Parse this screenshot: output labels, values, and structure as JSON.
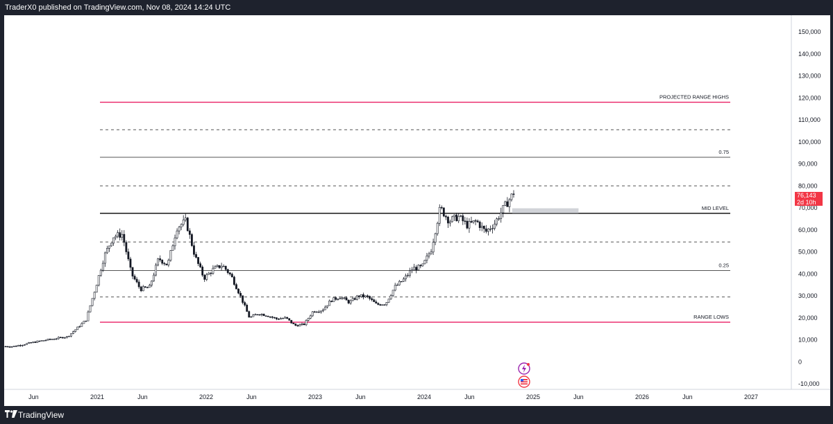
{
  "header": {
    "publish_text": "TraderX0 published on TradingView.com, Nov 08, 2024 14:24 UTC"
  },
  "footer": {
    "brand_text": "TradingView",
    "logo_icon": "tradingview-logo-icon"
  },
  "price_axis": {
    "labels": [
      "150,000",
      "140,000",
      "130,000",
      "120,000",
      "110,000",
      "100,000",
      "90,000",
      "80,000",
      "70,000",
      "60,000",
      "50,000",
      "40,000",
      "30,000",
      "20,000",
      "10,000",
      "0",
      "-10,000"
    ]
  },
  "time_axis": {
    "labels": [
      "Jun",
      "2021",
      "Jun",
      "2022",
      "Jun",
      "2023",
      "Jun",
      "2024",
      "Jun",
      "2025",
      "Jun",
      "2026",
      "Jun",
      "2027"
    ]
  },
  "current_price": {
    "value": "76,143",
    "countdown": "2d 10h",
    "color": "#f23645"
  },
  "levels": [
    {
      "label": "PROJECTED RANGE HIGHS",
      "price": 118000,
      "style": "solid",
      "color": "#e91e63"
    },
    {
      "label": "",
      "price": 105500,
      "style": "dashed",
      "color": "#555555"
    },
    {
      "label": "0.75",
      "price": 93000,
      "style": "solid",
      "color": "#555555"
    },
    {
      "label": "",
      "price": 80000,
      "style": "dashed",
      "color": "#555555"
    },
    {
      "label": "MID LEVEL",
      "price": 67500,
      "style": "solid",
      "color": "#000000"
    },
    {
      "label": "",
      "price": 54500,
      "style": "dashed",
      "color": "#555555"
    },
    {
      "label": "0.25",
      "price": 41500,
      "style": "solid",
      "color": "#555555"
    },
    {
      "label": "",
      "price": 29500,
      "style": "dashed",
      "color": "#555555"
    },
    {
      "label": "RANGE LOWS",
      "price": 18000,
      "style": "solid",
      "color": "#e91e63"
    }
  ],
  "chart_data": {
    "type": "candlestick",
    "symbol_hint": "weekly price",
    "ylim": [
      -13000,
      157000
    ],
    "grid": false,
    "x_start": "2020-04",
    "x_end": "2024-11",
    "trend_points": [
      [
        "2020-04",
        7000
      ],
      [
        "2020-07",
        9500
      ],
      [
        "2020-10",
        11500
      ],
      [
        "2020-12",
        19000
      ],
      [
        "2021-01",
        33000
      ],
      [
        "2021-02",
        48000
      ],
      [
        "2021-03",
        57000
      ],
      [
        "2021-04",
        58000
      ],
      [
        "2021-05",
        40000
      ],
      [
        "2021-06",
        33000
      ],
      [
        "2021-07",
        34000
      ],
      [
        "2021-08",
        47000
      ],
      [
        "2021-09",
        44000
      ],
      [
        "2021-10",
        61000
      ],
      [
        "2021-11",
        64000
      ],
      [
        "2021-12",
        48000
      ],
      [
        "2022-01",
        38000
      ],
      [
        "2022-02",
        42000
      ],
      [
        "2022-03",
        44000
      ],
      [
        "2022-04",
        39000
      ],
      [
        "2022-05",
        30000
      ],
      [
        "2022-06",
        20000
      ],
      [
        "2022-07",
        22000
      ],
      [
        "2022-08",
        21000
      ],
      [
        "2022-09",
        19500
      ],
      [
        "2022-10",
        20000
      ],
      [
        "2022-11",
        16500
      ],
      [
        "2022-12",
        17000
      ],
      [
        "2023-01",
        23000
      ],
      [
        "2023-02",
        23500
      ],
      [
        "2023-03",
        28000
      ],
      [
        "2023-04",
        29500
      ],
      [
        "2023-05",
        27000
      ],
      [
        "2023-06",
        30000
      ],
      [
        "2023-07",
        29500
      ],
      [
        "2023-08",
        26000
      ],
      [
        "2023-09",
        26500
      ],
      [
        "2023-10",
        34000
      ],
      [
        "2023-11",
        37500
      ],
      [
        "2023-12",
        42500
      ],
      [
        "2024-01",
        43000
      ],
      [
        "2024-02",
        51000
      ],
      [
        "2024-03",
        70000
      ],
      [
        "2024-04",
        64000
      ],
      [
        "2024-05",
        66000
      ],
      [
        "2024-06",
        62000
      ],
      [
        "2024-07",
        64000
      ],
      [
        "2024-08",
        59000
      ],
      [
        "2024-09",
        63000
      ],
      [
        "2024-10",
        70000
      ],
      [
        "2024-11",
        76143
      ]
    ],
    "highlight_zone": {
      "from": "2024-11",
      "to": "2025-06",
      "low": 67500,
      "high": 69800
    }
  },
  "markers": [
    {
      "name": "lightning-event-icon",
      "color": "#9c27b0"
    },
    {
      "name": "us-flag-event-icon",
      "color": "#f23645"
    }
  ]
}
